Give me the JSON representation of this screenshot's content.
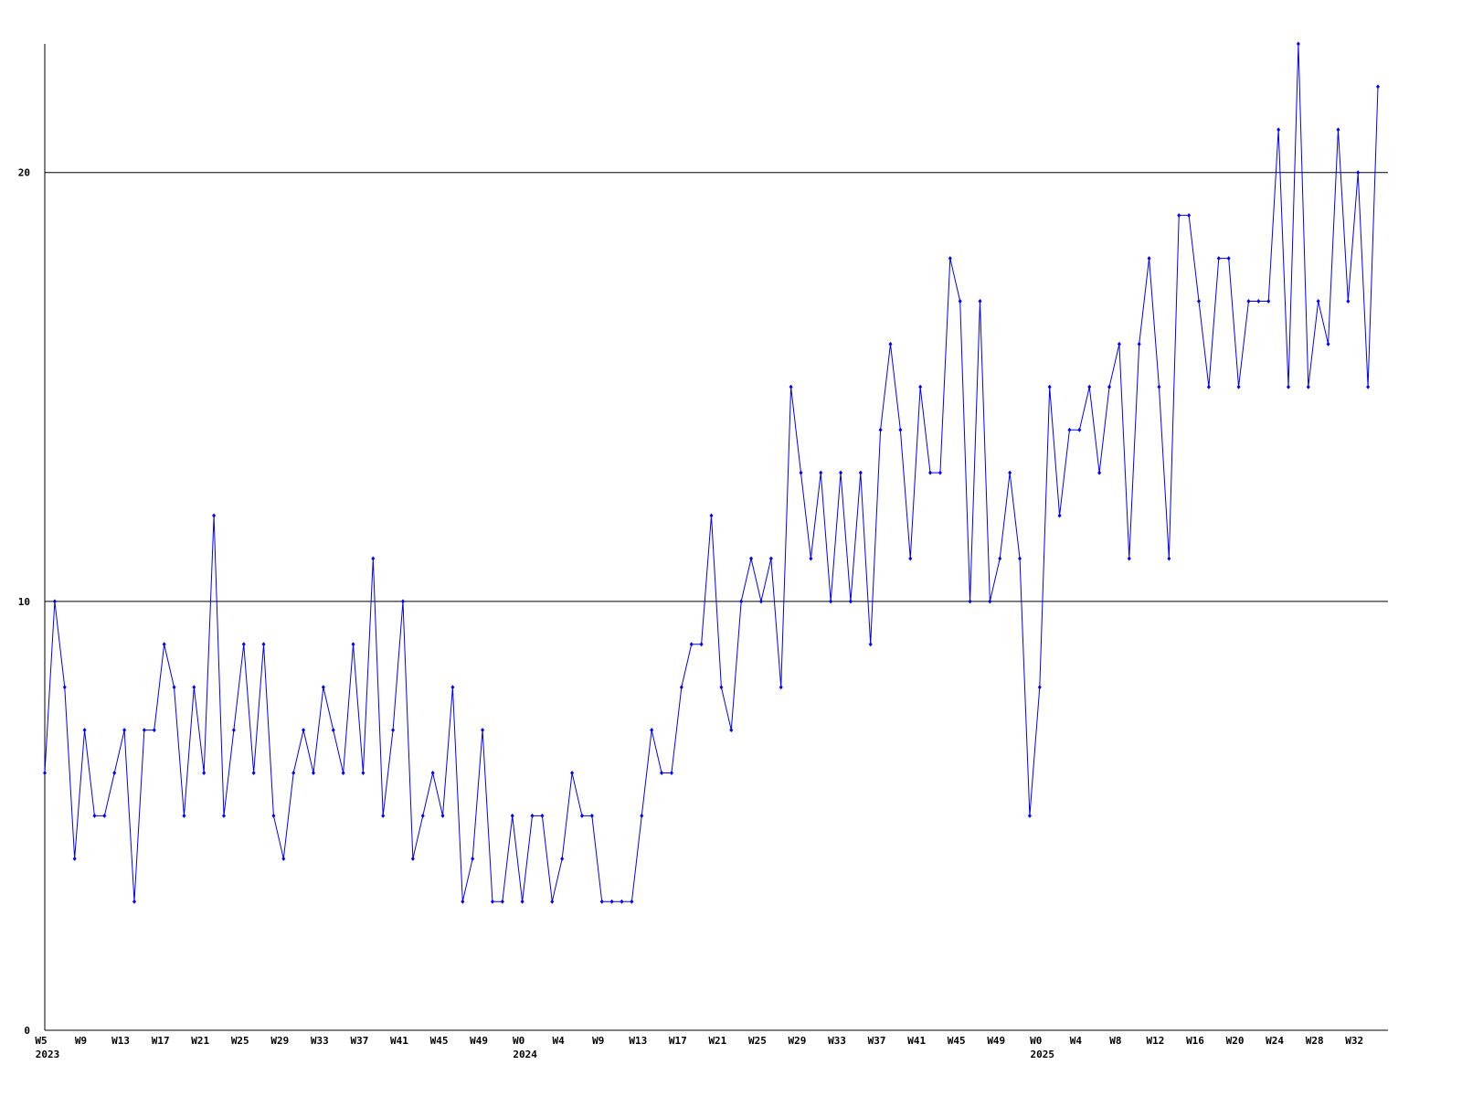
{
  "chart_data": {
    "type": "line",
    "categories": [
      "W5",
      null,
      null,
      null,
      "W9",
      null,
      null,
      null,
      "W13",
      null,
      null,
      null,
      "W17",
      null,
      null,
      null,
      "W21",
      null,
      null,
      null,
      "W25",
      null,
      null,
      null,
      "W29",
      null,
      null,
      null,
      "W33",
      null,
      null,
      null,
      "W37",
      null,
      null,
      null,
      "W41",
      null,
      null,
      null,
      "W45",
      null,
      null,
      null,
      "W49",
      null,
      null,
      null,
      "W0",
      null,
      null,
      null,
      "W4",
      null,
      null,
      null,
      "W9",
      null,
      null,
      null,
      "W13",
      null,
      null,
      null,
      "W17",
      null,
      null,
      null,
      "W21",
      null,
      null,
      null,
      "W25",
      null,
      null,
      null,
      "W29",
      null,
      null,
      null,
      "W33",
      null,
      null,
      null,
      "W37",
      null,
      null,
      null,
      "W41",
      null,
      null,
      null,
      "W45",
      null,
      null,
      null,
      "W49",
      null,
      null,
      null,
      "W0",
      null,
      null,
      null,
      "W4",
      null,
      null,
      null,
      "W8",
      null,
      null,
      null,
      "W12",
      null,
      null,
      null,
      "W16",
      null,
      null,
      null,
      "W20",
      null,
      null,
      null,
      "W24",
      null,
      null,
      null,
      "W28",
      null,
      null,
      null,
      "W32",
      null,
      null
    ],
    "category_years": [
      "2023",
      null,
      null,
      null,
      null,
      null,
      null,
      null,
      null,
      null,
      null,
      null,
      null,
      null,
      null,
      null,
      null,
      null,
      null,
      null,
      null,
      null,
      null,
      null,
      null,
      null,
      null,
      null,
      null,
      null,
      null,
      null,
      null,
      null,
      null,
      null,
      null,
      null,
      null,
      null,
      null,
      null,
      null,
      null,
      null,
      null,
      null,
      null,
      "2024",
      null,
      null,
      null,
      null,
      null,
      null,
      null,
      null,
      null,
      null,
      null,
      null,
      null,
      null,
      null,
      null,
      null,
      null,
      null,
      null,
      null,
      null,
      null,
      null,
      null,
      null,
      null,
      null,
      null,
      null,
      null,
      null,
      null,
      null,
      null,
      null,
      null,
      null,
      null,
      null,
      null,
      null,
      null,
      null,
      null,
      null,
      null,
      null,
      null,
      null,
      null,
      "2025",
      null,
      null,
      null,
      null,
      null,
      null,
      null,
      null,
      null,
      null,
      null,
      null,
      null,
      null,
      null,
      null,
      null,
      null,
      null,
      null,
      null,
      null,
      null,
      null,
      null,
      null,
      null,
      null,
      null,
      null,
      null,
      null,
      null
    ],
    "series": [
      {
        "color": "#0000ff",
        "values": [
          6,
          10,
          8,
          4,
          7,
          5,
          5,
          6,
          7,
          3,
          7,
          7,
          9,
          8,
          5,
          8,
          6,
          12,
          5,
          7,
          9,
          6,
          9,
          5,
          4,
          6,
          7,
          6,
          8,
          7,
          6,
          9,
          6,
          11,
          5,
          7,
          10,
          4,
          5,
          6,
          5,
          8,
          3,
          4,
          7,
          3,
          3,
          5,
          3,
          5,
          5,
          3,
          4,
          6,
          5,
          5,
          3,
          3,
          3,
          3,
          5,
          7,
          6,
          6,
          8,
          9,
          9,
          12,
          8,
          7,
          10,
          11,
          10,
          11,
          8,
          15,
          13,
          11,
          13,
          10,
          13,
          10,
          13,
          9,
          14,
          16,
          14,
          11,
          15,
          13,
          13,
          18,
          17,
          10,
          17,
          10,
          11,
          13,
          11,
          5,
          8,
          15,
          12,
          14,
          14,
          15,
          13,
          15,
          16,
          11,
          16,
          18,
          15,
          11,
          19,
          19,
          17,
          15,
          18,
          18,
          15,
          17,
          17,
          17,
          21,
          15,
          23,
          15,
          17,
          16,
          21,
          17,
          20,
          15,
          22
        ]
      }
    ],
    "ylim": [
      0,
      23
    ],
    "yticks": [
      0,
      10,
      20
    ],
    "grid": true
  }
}
